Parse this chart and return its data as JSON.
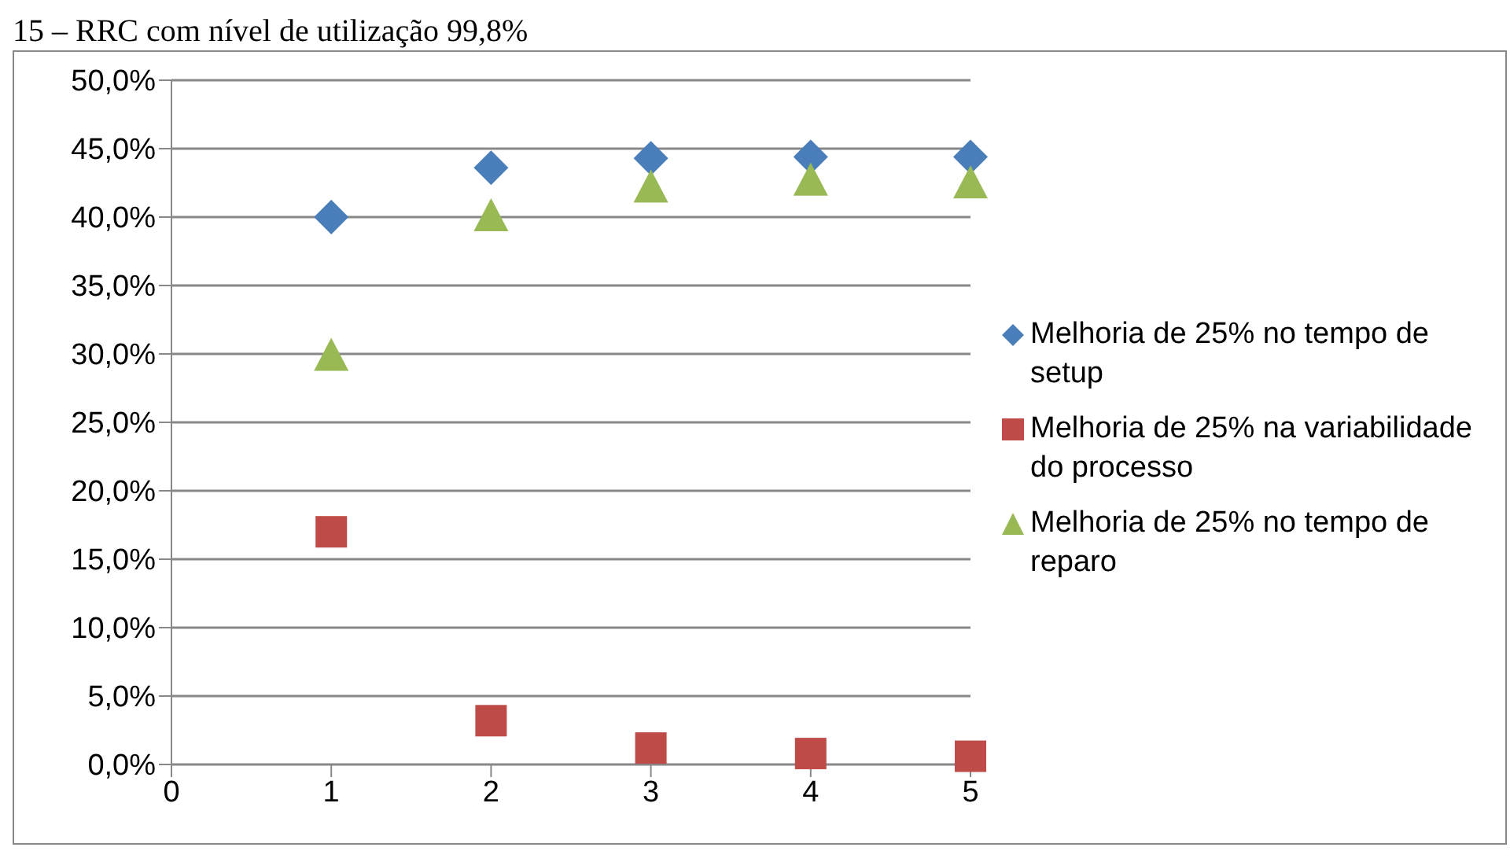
{
  "chart_data": {
    "type": "scatter",
    "title": "15 – RRC com nível de utilização 99,8%",
    "x": [
      1,
      2,
      3,
      4,
      5
    ],
    "series": [
      {
        "name": "Melhoria de 25% no tempo de setup",
        "color": "#4a7ebb",
        "marker": "diamond",
        "values": [
          40.0,
          43.6,
          44.3,
          44.4,
          44.4
        ]
      },
      {
        "name": "Melhoria de 25% na variabilidade do processo",
        "color": "#be4b48",
        "marker": "square",
        "values": [
          17.0,
          3.2,
          1.2,
          0.8,
          0.6
        ]
      },
      {
        "name": "Melhoria de 25% no tempo de reparo",
        "color": "#98b954",
        "marker": "triangle",
        "values": [
          29.8,
          40.0,
          42.1,
          42.6,
          42.4
        ]
      }
    ],
    "xlim": [
      0,
      5
    ],
    "xticks": [
      0,
      1,
      2,
      3,
      4,
      5
    ],
    "ylim": [
      0,
      50
    ],
    "yticks": [
      {
        "value": 0,
        "label": "0,0%"
      },
      {
        "value": 5,
        "label": "5,0%"
      },
      {
        "value": 10,
        "label": "10,0%"
      },
      {
        "value": 15,
        "label": "15,0%"
      },
      {
        "value": 20,
        "label": "20,0%"
      },
      {
        "value": 25,
        "label": "25,0%"
      },
      {
        "value": 30,
        "label": "30,0%"
      },
      {
        "value": 35,
        "label": "35,0%"
      },
      {
        "value": 40,
        "label": "40,0%"
      },
      {
        "value": 45,
        "label": "45,0%"
      },
      {
        "value": 50,
        "label": "50,0%"
      }
    ],
    "grid": "y",
    "legend": "right"
  }
}
